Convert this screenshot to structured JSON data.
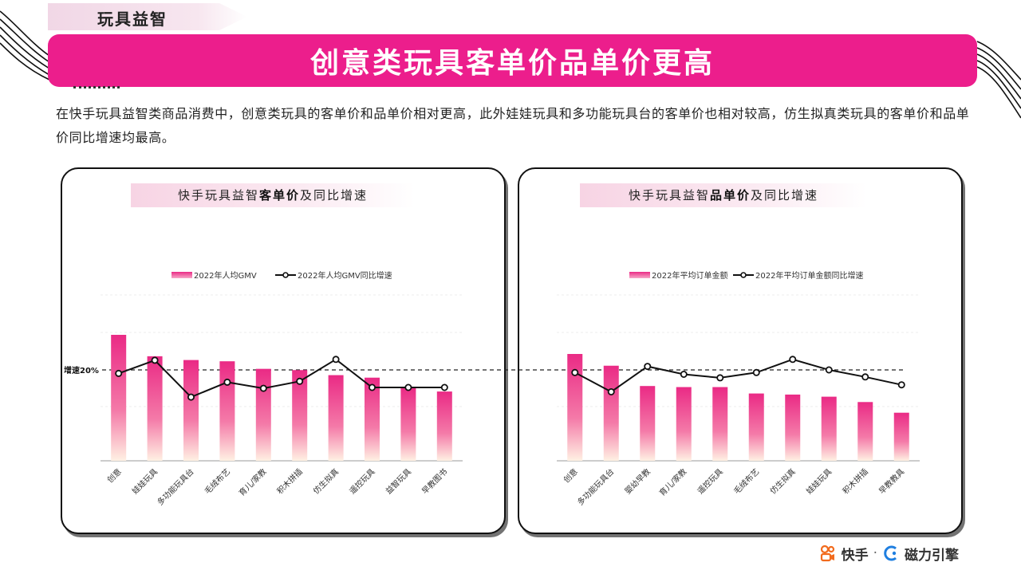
{
  "section_tag": "玩具益智",
  "banner_title": "创意类玩具客单价品单价更高",
  "intro_text": "在快手玩具益智类商品消费中，创意类玩具的客单价和品单价相对更高，此外娃娃玩具和多功能玩具台的客单价也相对较高，仿生拟真类玩具的客单价和品单价同比增速均最高。",
  "threshold_label": "增速20%",
  "panels": [
    {
      "title_pre": "快手玩具益智",
      "title_bold": "客单价",
      "title_post": "及同比增速"
    },
    {
      "title_pre": "快手玩具益智",
      "title_bold": "品单价",
      "title_post": "及同比增速"
    }
  ],
  "footer": {
    "brand1": "快手",
    "separator": "·",
    "brand2": "磁力引擎"
  },
  "colors": {
    "accent": "#ec1e8c",
    "bar_top": "#ea2a85",
    "bar_bottom": "#fff1e3",
    "line": "#111111"
  },
  "chart_data": [
    {
      "type": "bar",
      "title": "快手玩具益智客单价及同比增速",
      "categories": [
        "创意",
        "娃娃玩具",
        "多功能玩具台",
        "毛绒布艺",
        "育儿/家教",
        "积木拼插",
        "仿生拟真",
        "遥控玩具",
        "益智玩具",
        "早教图书"
      ],
      "series": [
        {
          "name": "2022年人均GMV",
          "type": "bar",
          "values": [
            100,
            83,
            80,
            79,
            73,
            72,
            68,
            66,
            58,
            55
          ]
        },
        {
          "name": "2022年人均GMV同比增速",
          "type": "line",
          "values": [
            16,
            31,
            -11,
            6,
            -1,
            7,
            32,
            0,
            0,
            0
          ]
        }
      ],
      "threshold": 20,
      "legend": "top-center",
      "grid": false
    },
    {
      "type": "bar",
      "title": "快手玩具益智品单价及同比增速",
      "categories": [
        "创意",
        "多功能玩具台",
        "婴幼早教",
        "育儿/家教",
        "遥控玩具",
        "毛绒布艺",
        "仿生拟真",
        "娃娃玩具",
        "积木拼插",
        "早教教具"
      ],
      "series": [
        {
          "name": "2022年平均订单金额",
          "type": "bar",
          "values": [
            100,
            89,
            70,
            69,
            69,
            63,
            62,
            60,
            55,
            45
          ]
        },
        {
          "name": "2022年平均订单金额同比增速",
          "type": "line",
          "values": [
            17,
            -5,
            24,
            15,
            11,
            17,
            32,
            20,
            12,
            3
          ]
        }
      ],
      "threshold": 20,
      "legend": "top-center",
      "grid": false
    }
  ]
}
